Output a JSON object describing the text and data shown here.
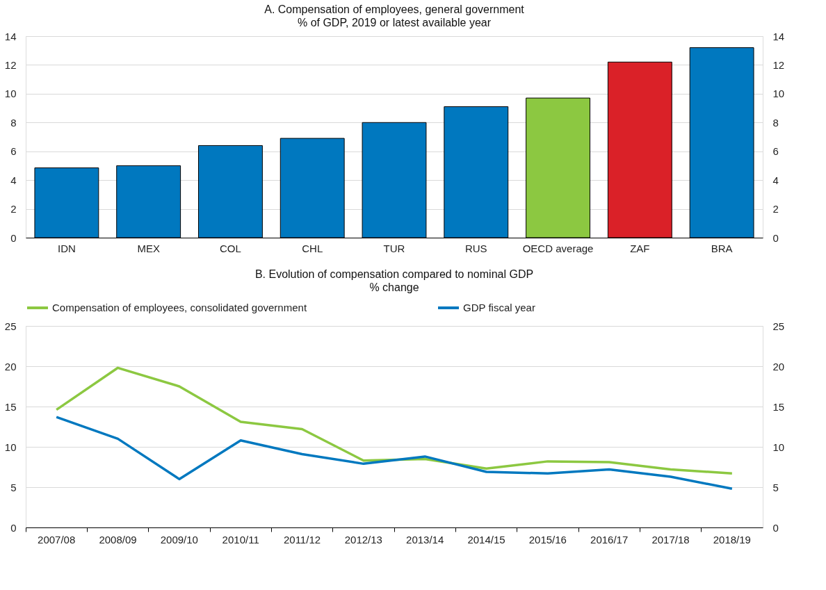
{
  "chart_data": [
    {
      "type": "bar",
      "title": "A. Compensation of employees, general government",
      "subtitle": "% of GDP, 2019 or latest available year",
      "categories": [
        "IDN",
        "MEX",
        "COL",
        "CHL",
        "TUR",
        "RUS",
        "OECD average",
        "ZAF",
        "BRA"
      ],
      "values": [
        4.85,
        5.0,
        6.4,
        6.9,
        8.0,
        9.1,
        9.7,
        12.2,
        13.2
      ],
      "colors": [
        "#0078bf",
        "#0078bf",
        "#0078bf",
        "#0078bf",
        "#0078bf",
        "#0078bf",
        "#8cc841",
        "#da2128",
        "#0078bf"
      ],
      "ylim": [
        0,
        14
      ],
      "yticks": [
        0,
        2,
        4,
        6,
        8,
        10,
        12,
        14
      ],
      "y2lim": [
        0,
        14
      ],
      "y2ticks": [
        0,
        2,
        4,
        6,
        8,
        10,
        12,
        14
      ],
      "grid": "y"
    },
    {
      "type": "line",
      "title": "B. Evolution of compensation compared to nominal GDP",
      "subtitle": "% change",
      "categories": [
        "2007/08",
        "2008/09",
        "2009/10",
        "2010/11",
        "2011/12",
        "2012/13",
        "2013/14",
        "2014/15",
        "2015/16",
        "2016/17",
        "2017/18",
        "2018/19"
      ],
      "series": [
        {
          "name": "Compensation of employees, consolidated government",
          "color": "#8cc841",
          "values": [
            14.6,
            19.8,
            17.5,
            13.1,
            12.2,
            8.3,
            8.5,
            7.3,
            8.2,
            8.1,
            7.2,
            6.7
          ]
        },
        {
          "name": "GDP fiscal year",
          "color": "#0078bf",
          "values": [
            13.7,
            11.0,
            6.0,
            10.8,
            9.1,
            7.9,
            8.8,
            6.9,
            6.7,
            7.2,
            6.3,
            4.8
          ]
        }
      ],
      "ylim": [
        0,
        25
      ],
      "yticks": [
        0,
        5,
        10,
        15,
        20,
        25
      ],
      "y2lim": [
        0,
        25
      ],
      "y2ticks": [
        0,
        5,
        10,
        15,
        20,
        25
      ],
      "grid": "y",
      "legend": "top",
      "line_style": "solid",
      "marker": "none"
    }
  ]
}
